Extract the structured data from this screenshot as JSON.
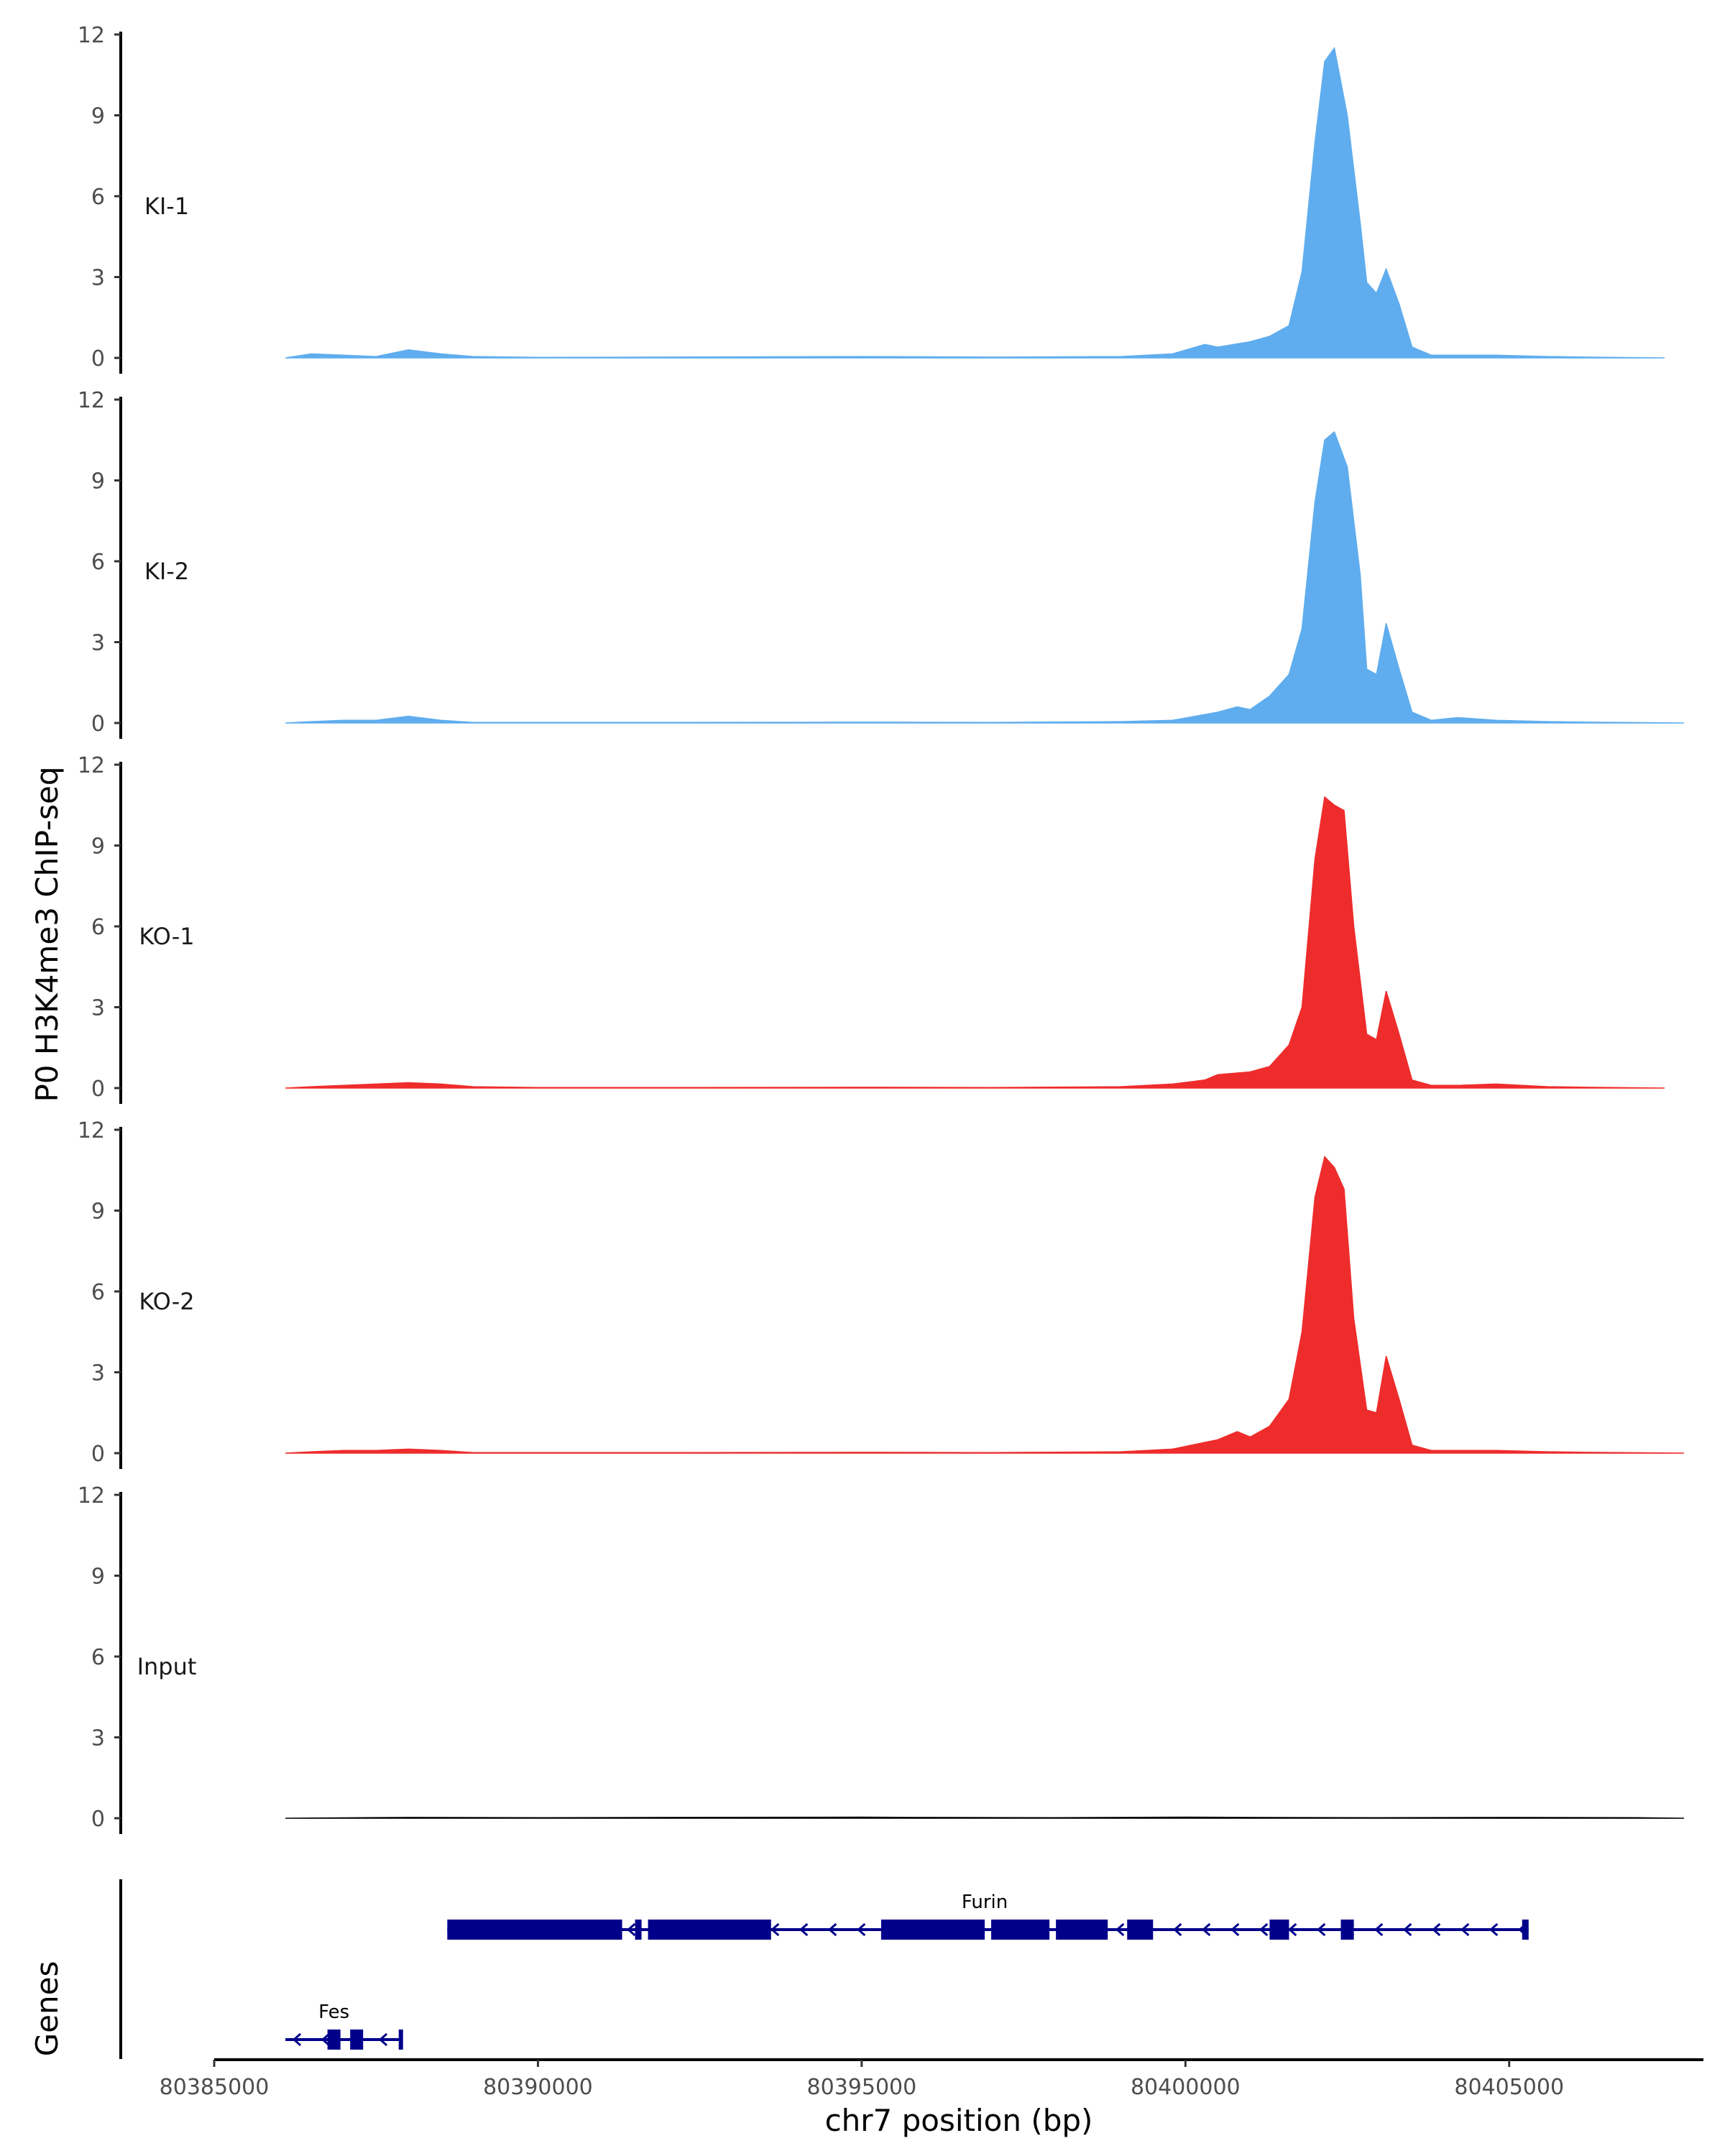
{
  "chart_data": {
    "type": "area",
    "ylabel": "P0 H3K4me3 ChIP-seq",
    "xlabel": "chr7 position (bp)",
    "ylim": [
      0,
      12
    ],
    "yticks": [
      "0",
      "3",
      "6",
      "9",
      "12"
    ],
    "xlim": [
      80385000,
      80408000
    ],
    "xticks": [
      {
        "value": 80385000,
        "label": "80385000"
      },
      {
        "value": 80390000,
        "label": "80390000"
      },
      {
        "value": 80395000,
        "label": "80395000"
      },
      {
        "value": 80400000,
        "label": "80400000"
      },
      {
        "value": 80405000,
        "label": "80405000"
      }
    ],
    "grid": false,
    "tracks": [
      {
        "name": "KI-1",
        "color": "#5fadee",
        "x": [
          80386100,
          80386500,
          80387000,
          80387500,
          80388000,
          80388500,
          80389000,
          80390000,
          80392000,
          80395000,
          80397000,
          80399000,
          80399800,
          80400300,
          80400500,
          80401000,
          80401300,
          80401600,
          80401800,
          80402000,
          80402150,
          80402300,
          80402500,
          80402700,
          80402800,
          80402950,
          80403100,
          80403300,
          80403500,
          80403800,
          80404200,
          80404800,
          80405600,
          80406200,
          80407400
        ],
        "values": [
          0,
          0.15,
          0.1,
          0.05,
          0.3,
          0.15,
          0.05,
          0.02,
          0.03,
          0.05,
          0.03,
          0.05,
          0.15,
          0.5,
          0.4,
          0.6,
          0.8,
          1.2,
          3.2,
          8.0,
          11.0,
          11.5,
          9.0,
          5.0,
          2.8,
          2.4,
          3.3,
          2.0,
          0.4,
          0.1,
          0.1,
          0.1,
          0.05,
          0.03,
          0
        ]
      },
      {
        "name": "KI-2",
        "color": "#5fadee",
        "x": [
          80386100,
          80386500,
          80387000,
          80387500,
          80388000,
          80388500,
          80389000,
          80390000,
          80392000,
          80395000,
          80397000,
          80399000,
          80399800,
          80400500,
          80400800,
          80401000,
          80401300,
          80401600,
          80401800,
          80402000,
          80402150,
          80402300,
          80402500,
          80402700,
          80402800,
          80402950,
          80403100,
          80403300,
          80403500,
          80403800,
          80404200,
          80404800,
          80405600,
          80406200,
          80407700
        ],
        "values": [
          0,
          0.05,
          0.1,
          0.1,
          0.25,
          0.1,
          0.02,
          0.02,
          0.02,
          0.03,
          0.02,
          0.05,
          0.1,
          0.4,
          0.6,
          0.5,
          1.0,
          1.8,
          3.5,
          8.2,
          10.5,
          10.8,
          9.5,
          5.5,
          2.0,
          1.8,
          3.7,
          2.0,
          0.4,
          0.1,
          0.2,
          0.1,
          0.05,
          0.03,
          0
        ]
      },
      {
        "name": "KO-1",
        "color": "#ee2c2c",
        "x": [
          80386100,
          80386500,
          80387000,
          80387500,
          80388000,
          80388500,
          80389000,
          80390000,
          80392000,
          80395000,
          80397000,
          80399000,
          80399800,
          80400300,
          80400500,
          80401000,
          80401300,
          80401600,
          80401800,
          80402000,
          80402150,
          80402300,
          80402450,
          80402600,
          80402800,
          80402950,
          80403100,
          80403300,
          80403500,
          80403800,
          80404200,
          80404800,
          80405600,
          80406200,
          80407400
        ],
        "values": [
          0,
          0.05,
          0.1,
          0.15,
          0.2,
          0.15,
          0.05,
          0.02,
          0.02,
          0.03,
          0.02,
          0.05,
          0.15,
          0.3,
          0.5,
          0.6,
          0.8,
          1.6,
          3.0,
          8.5,
          10.8,
          10.5,
          10.3,
          6.0,
          2.0,
          1.8,
          3.6,
          2.0,
          0.3,
          0.1,
          0.1,
          0.15,
          0.05,
          0.03,
          0
        ]
      },
      {
        "name": "KO-2",
        "color": "#ee2c2c",
        "x": [
          80386100,
          80386500,
          80387000,
          80387500,
          80388000,
          80388500,
          80389000,
          80390000,
          80392000,
          80395000,
          80397000,
          80399000,
          80399800,
          80400500,
          80400800,
          80401000,
          80401300,
          80401600,
          80401800,
          80402000,
          80402150,
          80402300,
          80402450,
          80402600,
          80402800,
          80402950,
          80403100,
          80403300,
          80403500,
          80403800,
          80404200,
          80404800,
          80405600,
          80406200,
          80407700
        ],
        "values": [
          0,
          0.05,
          0.1,
          0.1,
          0.15,
          0.1,
          0.02,
          0.02,
          0.02,
          0.03,
          0.02,
          0.05,
          0.15,
          0.5,
          0.8,
          0.6,
          1.0,
          2.0,
          4.5,
          9.5,
          11.0,
          10.6,
          9.8,
          5.0,
          1.6,
          1.5,
          3.6,
          2.0,
          0.3,
          0.1,
          0.1,
          0.1,
          0.05,
          0.03,
          0
        ]
      },
      {
        "name": "Input",
        "color": "#000000",
        "x": [
          80386100,
          80388000,
          80390000,
          80392000,
          80395000,
          80396000,
          80398000,
          80400000,
          80401000,
          80403000,
          80405000,
          80407000,
          80407700
        ],
        "values": [
          0,
          0.03,
          0.02,
          0.03,
          0.04,
          0.03,
          0.02,
          0.04,
          0.03,
          0.02,
          0.03,
          0.02,
          0
        ]
      }
    ],
    "genes": {
      "label": "Genes",
      "items": [
        {
          "name": "Furin",
          "strand": "-",
          "start": 80388600,
          "end": 80405300,
          "exons": [
            [
              80388600,
              80391300
            ],
            [
              80391500,
              80391600
            ],
            [
              80391700,
              80393600
            ],
            [
              80395300,
              80396900
            ],
            [
              80397000,
              80397900
            ],
            [
              80398000,
              80398800
            ],
            [
              80399100,
              80399500
            ],
            [
              80401300,
              80401600
            ],
            [
              80402400,
              80402600
            ],
            [
              80405200,
              80405300
            ]
          ]
        },
        {
          "name": "Fes",
          "strand": "-",
          "start": 80386100,
          "end": 80387900,
          "exons": [
            [
              80386750,
              80386950
            ],
            [
              80387100,
              80387300
            ],
            [
              80387850,
              80387900
            ]
          ]
        }
      ]
    }
  }
}
